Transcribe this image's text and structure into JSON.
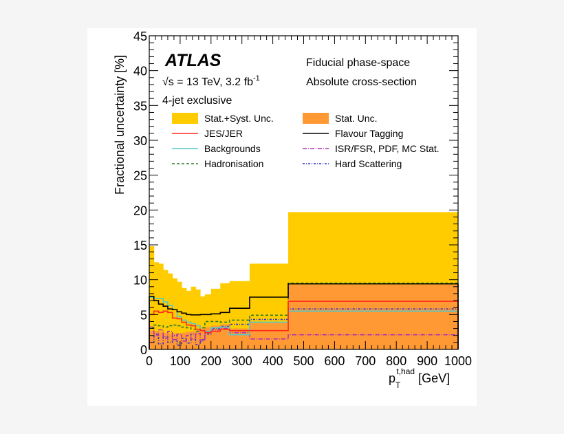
{
  "chart_data": {
    "type": "histogram-step",
    "xlabel_main": "p",
    "xlabel_sub": "T",
    "xlabel_sup": "t,had",
    "xlabel_unit": "[GeV]",
    "ylabel": "Fractional uncertainty [%]",
    "xlim": [
      0,
      1000
    ],
    "ylim": [
      0,
      45
    ],
    "x_ticks": [
      "0",
      "100",
      "200",
      "300",
      "400",
      "500",
      "600",
      "700",
      "800",
      "900",
      "1000"
    ],
    "y_ticks": [
      "0",
      "5",
      "10",
      "15",
      "20",
      "25",
      "30",
      "35",
      "40",
      "45"
    ],
    "grid": false,
    "annotations": {
      "atlas": "ATLAS",
      "energy": "√s = 13 TeV, 3.2 fb",
      "energy_sup": "-1",
      "selection": "4-jet exclusive",
      "phase_space": "Fiducial phase-space",
      "observable": "Absolute cross-section"
    },
    "colors": {
      "total": "#ffcc00",
      "stat": "#ff9933",
      "jes": "#ff2a1a",
      "flavour": "#000000",
      "backgrounds": "#55c8c8",
      "isr": "#b030b0",
      "hadronisation": "#2a7a2a",
      "hard": "#3030d0"
    },
    "bin_edges": [
      0,
      15,
      30,
      45,
      60,
      75,
      90,
      105,
      120,
      135,
      150,
      165,
      180,
      200,
      230,
      260,
      325,
      450,
      1000
    ],
    "series": [
      {
        "name": "Stat.+Syst. Unc.",
        "style": "fill",
        "values": [
          14.8,
          12.5,
          12.3,
          11.4,
          10.9,
          10.2,
          9.7,
          8.8,
          8.4,
          9.0,
          8.6,
          7.6,
          7.9,
          8.7,
          9.5,
          9.8,
          12.3,
          19.7
        ]
      },
      {
        "name": "Stat. Unc.",
        "style": "fill",
        "values": [
          2.7,
          2.6,
          2.5,
          2.4,
          2.3,
          2.3,
          2.3,
          2.4,
          2.5,
          2.6,
          2.8,
          3.0,
          3.2,
          3.4,
          3.6,
          3.0,
          3.8,
          9.3
        ]
      },
      {
        "name": "JES/JER",
        "style": "solid",
        "values": [
          5.0,
          5.5,
          5.3,
          5.5,
          5.3,
          4.5,
          4.4,
          3.9,
          3.5,
          3.4,
          2.9,
          2.7,
          2.4,
          2.6,
          2.9,
          2.7,
          2.7,
          6.9
        ]
      },
      {
        "name": "Flavour Tagging",
        "style": "solid",
        "values": [
          7.6,
          7.0,
          6.5,
          6.2,
          5.8,
          5.7,
          5.4,
          5.2,
          5.0,
          4.95,
          4.95,
          5.0,
          5.0,
          5.1,
          5.3,
          5.9,
          7.5,
          9.4
        ]
      },
      {
        "name": "Backgrounds",
        "style": "solid",
        "values": [
          7.5,
          7.3,
          7.3,
          6.8,
          6.3,
          5.7,
          4.7,
          4.2,
          3.9,
          3.7,
          3.4,
          2.7,
          2.6,
          3.1,
          3.2,
          2.1,
          3.9,
          5.5
        ]
      },
      {
        "name": "ISR/FSR, PDF, MC Stat.",
        "style": "dashdot",
        "values": [
          3.2,
          2.0,
          2.8,
          1.6,
          2.6,
          1.4,
          2.2,
          1.2,
          2.0,
          1.5,
          2.3,
          1.2,
          2.5,
          2.8,
          3.0,
          2.4,
          1.5,
          2.1
        ]
      },
      {
        "name": "Hadronisation",
        "style": "dashed",
        "values": [
          3.1,
          3.5,
          3.4,
          3.2,
          3.4,
          3.5,
          3.4,
          3.2,
          3.1,
          2.9,
          2.6,
          3.1,
          4.0,
          4.0,
          3.9,
          4.2,
          4.9,
          9.5
        ]
      },
      {
        "name": "Hard Scattering",
        "style": "dashdot2",
        "values": [
          1.0,
          2.2,
          0.8,
          1.8,
          1.0,
          2.0,
          0.6,
          1.6,
          0.9,
          2.2,
          0.7,
          1.4,
          2.2,
          3.0,
          3.3,
          3.6,
          4.3,
          5.8
        ]
      }
    ],
    "legend_position": "top"
  }
}
